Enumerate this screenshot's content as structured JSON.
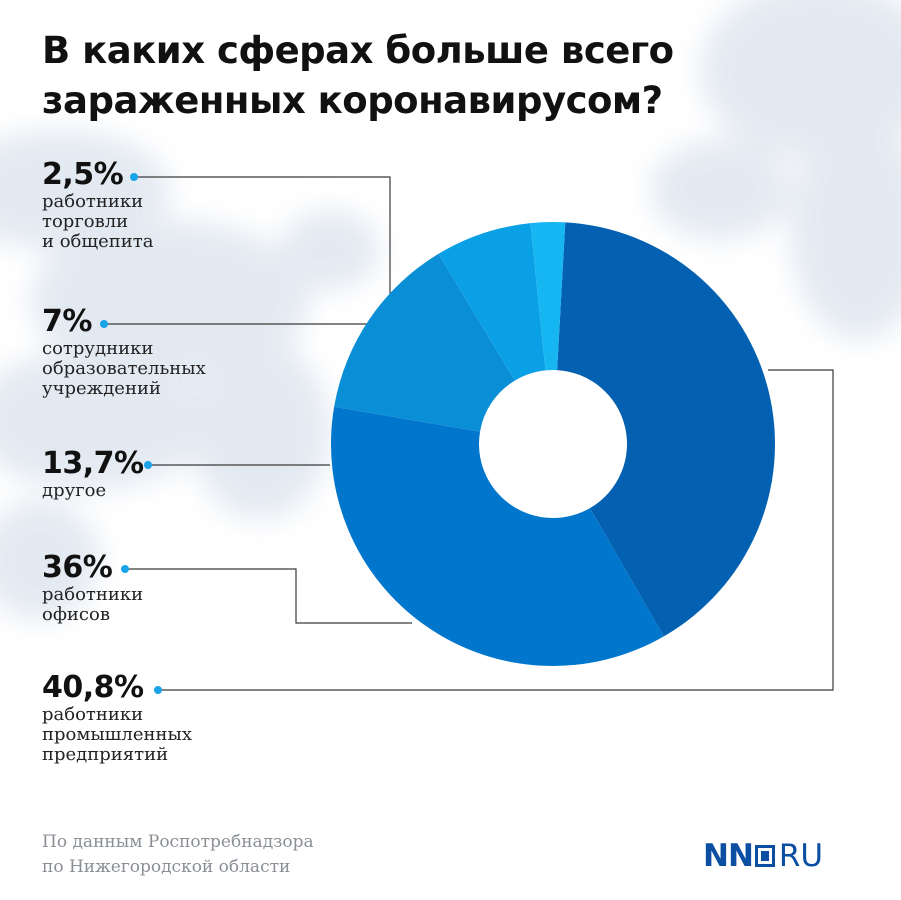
{
  "title": {
    "line1": "В каких сферах больше всего",
    "line2": "зараженных коронавирусом?"
  },
  "chart_data": {
    "type": "pie",
    "variant": "donut",
    "unit": "%",
    "slices": [
      {
        "value": 40.8,
        "label": "40,8%",
        "desc": [
          "работники",
          "промышленных",
          "предприятий"
        ],
        "color": "#0460b0"
      },
      {
        "value": 36,
        "label": "36%",
        "desc": [
          "работники",
          "офисов"
        ],
        "color": "#0077cc"
      },
      {
        "value": 13.7,
        "label": "13,7%",
        "desc": [
          "другое"
        ],
        "color": "#0a8fd6"
      },
      {
        "value": 7,
        "label": "7%",
        "desc": [
          "сотрудники",
          "образовательных",
          "учреждений"
        ],
        "color": "#0aa0e6"
      },
      {
        "value": 2.5,
        "label": "2,5%",
        "desc": [
          "работники",
          "торговли",
          "и общепита"
        ],
        "color": "#16b6f2"
      }
    ]
  },
  "source": {
    "line1": "По данным Роспотребнадзора",
    "line2": "по Нижегородской области"
  },
  "logo": {
    "left": "NN",
    "right": "RU"
  },
  "colors": {
    "title": "#111111",
    "source": "#8a8f96",
    "dot": "#1aa3e8",
    "connector": "#3a3a3a",
    "brand": "#0b4ea2"
  }
}
